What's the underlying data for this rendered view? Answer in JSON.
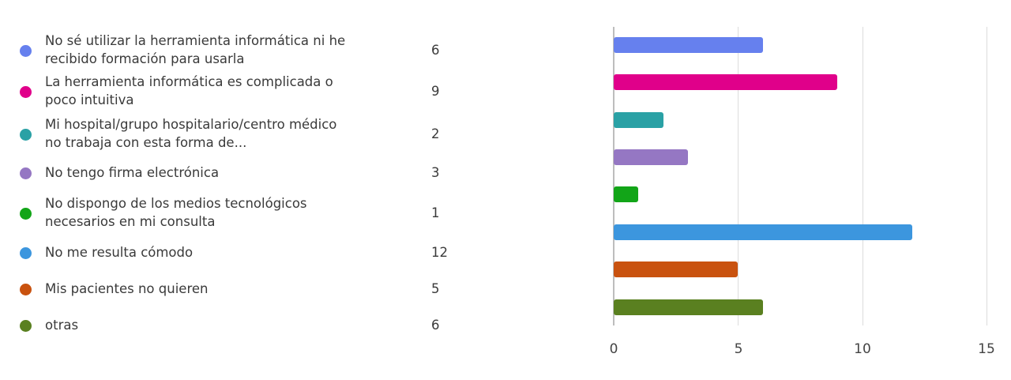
{
  "chart_data": {
    "type": "bar",
    "orientation": "horizontal",
    "title": "",
    "xlabel": "",
    "ylabel": "",
    "xlim": [
      0,
      15
    ],
    "x_ticks": [
      "0",
      "5",
      "10",
      "15"
    ],
    "grid": true,
    "legend_position": "left",
    "categories": [
      "No sé utilizar la herramienta informática ni he recibido formación para usarla",
      "La herramienta informática es complicada o poco intuitiva",
      "Mi hospital/grupo hospitalario/centro médico no trabaja con esta forma de...",
      "No tengo firma electrónica",
      "No dispongo de los medios tecnológicos necesarios en mi consulta",
      "No me resulta cómodo",
      "Mis pacientes no quieren",
      "otras"
    ],
    "values": [
      6,
      9,
      2,
      3,
      1,
      12,
      5,
      6
    ],
    "colors": [
      "#6680ee",
      "#e0008a",
      "#2aa1a5",
      "#9577c3",
      "#12a518",
      "#3c96de",
      "#c9520f",
      "#5a8020"
    ]
  },
  "legend": {
    "items": [
      {
        "line1": "No sé utilizar la herramienta informática ni he",
        "line2": "recibido formación para usarla",
        "count": "6",
        "color": "#6680ee"
      },
      {
        "line1": "La herramienta informática es complicada o",
        "line2": "poco intuitiva",
        "count": "9",
        "color": "#e0008a"
      },
      {
        "line1": "Mi hospital/grupo hospitalario/centro médico",
        "line2": "no trabaja con esta forma de...",
        "count": "2",
        "color": "#2aa1a5"
      },
      {
        "line1": "No tengo firma electrónica",
        "line2": "",
        "count": "3",
        "color": "#9577c3"
      },
      {
        "line1": "No dispongo de los medios tecnológicos",
        "line2": "necesarios en mi consulta",
        "count": "1",
        "color": "#12a518"
      },
      {
        "line1": "No me resulta cómodo",
        "line2": "",
        "count": "12",
        "color": "#3c96de"
      },
      {
        "line1": "Mis pacientes no quieren",
        "line2": "",
        "count": "5",
        "color": "#c9520f"
      },
      {
        "line1": "otras",
        "line2": "",
        "count": "6",
        "color": "#5a8020"
      }
    ]
  },
  "axis": {
    "ticks": [
      "0",
      "5",
      "10",
      "15"
    ]
  }
}
